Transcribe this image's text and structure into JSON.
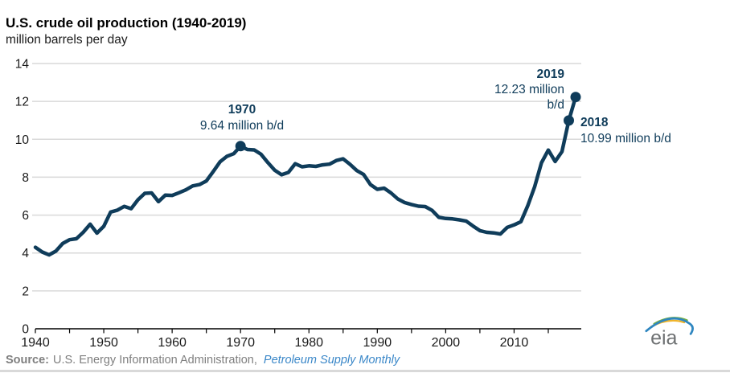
{
  "header": {
    "title": "U.S. crude oil production (1940-2019)",
    "subtitle": "million barrels per day"
  },
  "chart_data": {
    "type": "line",
    "title": "U.S. crude oil production (1940-2019)",
    "ylabel": "million barrels per day",
    "xlabel": "",
    "x_range": [
      1940,
      2019
    ],
    "x_interval_years": 1,
    "ylim": [
      0,
      14
    ],
    "yticks": [
      0,
      2,
      4,
      6,
      8,
      10,
      12,
      14
    ],
    "xticks_labeled": [
      1940,
      1950,
      1960,
      1970,
      1980,
      1990,
      2000,
      2010
    ],
    "xticks_minor": [
      1940,
      1945,
      1950,
      1955,
      1960,
      1965,
      1970,
      1975,
      1980,
      1985,
      1990,
      1995,
      2000,
      2005,
      2010,
      2015
    ],
    "grid": "horizontal",
    "legend": "none",
    "series": [
      {
        "name": "U.S. crude oil production",
        "values": [
          4.3,
          4.05,
          3.9,
          4.1,
          4.5,
          4.7,
          4.75,
          5.09,
          5.52,
          5.05,
          5.41,
          6.16,
          6.26,
          6.46,
          6.34,
          6.81,
          7.15,
          7.17,
          6.71,
          7.05,
          7.04,
          7.18,
          7.33,
          7.54,
          7.61,
          7.8,
          8.3,
          8.81,
          9.1,
          9.24,
          9.64,
          9.46,
          9.44,
          9.21,
          8.77,
          8.37,
          8.13,
          8.25,
          8.71,
          8.55,
          8.6,
          8.57,
          8.65,
          8.69,
          8.88,
          8.97,
          8.68,
          8.35,
          8.14,
          7.61,
          7.36,
          7.42,
          7.17,
          6.85,
          6.66,
          6.56,
          6.47,
          6.45,
          6.25,
          5.88,
          5.82,
          5.8,
          5.75,
          5.68,
          5.42,
          5.18,
          5.09,
          5.06,
          5.0,
          5.35,
          5.48,
          5.65,
          6.5,
          7.49,
          8.76,
          9.43,
          8.83,
          9.35,
          10.99,
          12.23
        ]
      }
    ],
    "markers": [
      {
        "year": 1970,
        "value": 9.64
      },
      {
        "year": 2018,
        "value": 10.99
      },
      {
        "year": 2019,
        "value": 12.23
      }
    ],
    "annotations": [
      {
        "year": "1970",
        "line1": "9.64 million b/d"
      },
      {
        "year": "2019",
        "line1": "12.23 million",
        "line2": "b/d"
      },
      {
        "year": "2018",
        "line1": "10.99 million b/d"
      }
    ],
    "colors": {
      "line": "#0f3c5a",
      "marker": "#0f3c5a",
      "grid": "#d9d9d9",
      "axis": "#000000",
      "annotation": "#0f3c5a"
    }
  },
  "footer": {
    "source_label": "Source:",
    "source_text": "U.S. Energy Information Administration,",
    "link_text": "Petroleum Supply Monthly"
  },
  "logo": {
    "text": "eia",
    "colors": {
      "text": "#6e7173",
      "yellow": "#f0b429",
      "green": "#76b043",
      "blue": "#2e86c0"
    }
  }
}
